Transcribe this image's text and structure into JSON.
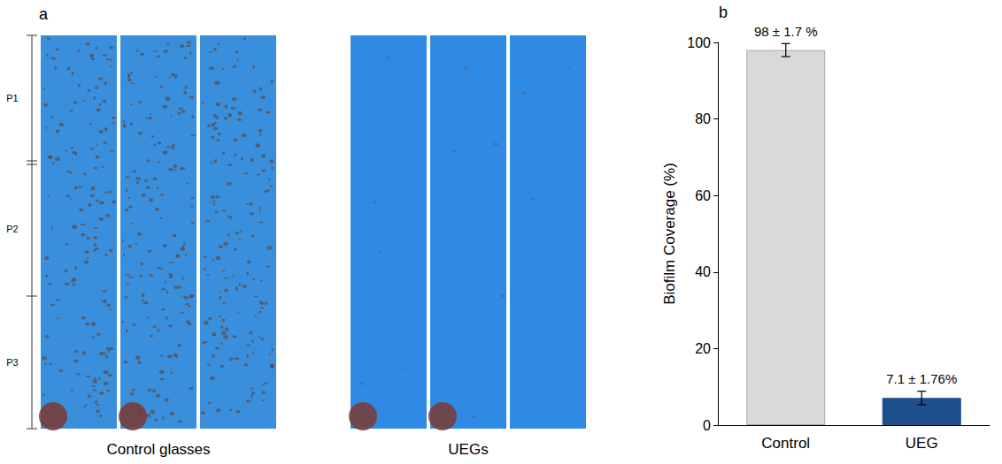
{
  "photo_panel": {
    "letter": "a",
    "regions": [
      "P1",
      "P2",
      "P3"
    ],
    "groups": [
      "Control glasses",
      "UEGs"
    ]
  },
  "chart_data": {
    "type": "bar",
    "letter": "b",
    "categories": [
      "Control",
      "UEG"
    ],
    "values": [
      98,
      7.1
    ],
    "errors": [
      1.7,
      1.76
    ],
    "value_labels": [
      "98 ± 1.7 %",
      "7.1 ± 1.76%"
    ],
    "colors": [
      "#d9d9d9",
      "#1f4e8c"
    ],
    "y_label": "Biofilm Coverage (%)",
    "ylim": [
      0,
      100
    ],
    "yticks": [
      0,
      20,
      40,
      60,
      80,
      100
    ],
    "grid": false,
    "data_labels": true
  }
}
